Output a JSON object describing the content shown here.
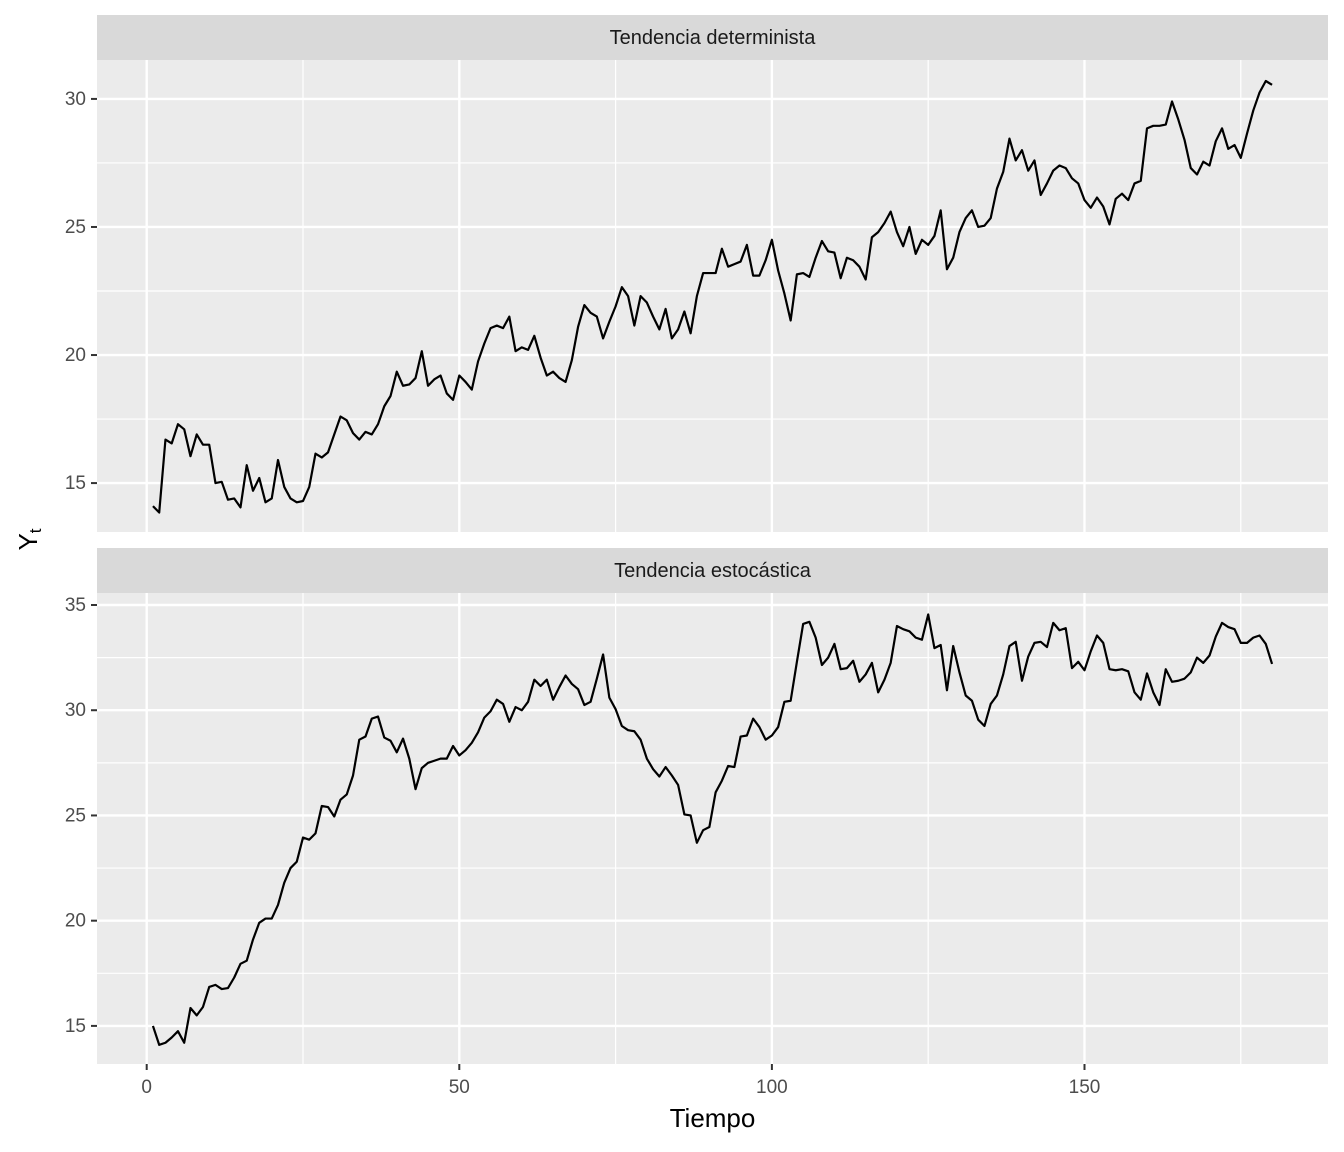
{
  "chart_data": [
    {
      "type": "line",
      "title": "Tendencia determinista",
      "ylabel": "Y",
      "ylabel_subscript": "t",
      "color": "#000000",
      "grid": true,
      "x": [
        1,
        2,
        3,
        4,
        5,
        6,
        7,
        8,
        9,
        10,
        11,
        12,
        13,
        14,
        15,
        16,
        17,
        18,
        19,
        20,
        21,
        22,
        23,
        24,
        25,
        26,
        27,
        28,
        29,
        30,
        31,
        32,
        33,
        34,
        35,
        36,
        37,
        38,
        39,
        40,
        41,
        42,
        43,
        44,
        45,
        46,
        47,
        48,
        49,
        50,
        51,
        52,
        53,
        54,
        55,
        56,
        57,
        58,
        59,
        60,
        61,
        62,
        63,
        64,
        65,
        66,
        67,
        68,
        69,
        70,
        71,
        72,
        73,
        74,
        75,
        76,
        77,
        78,
        79,
        80,
        81,
        82,
        83,
        84,
        85,
        86,
        87,
        88,
        89,
        90,
        91,
        92,
        93,
        94,
        95,
        96,
        97,
        98,
        99,
        100,
        101,
        102,
        103,
        104,
        105,
        106,
        107,
        108,
        109,
        110,
        111,
        112,
        113,
        114,
        115,
        116,
        117,
        118,
        119,
        120,
        121,
        122,
        123,
        124,
        125,
        126,
        127,
        128,
        129,
        130,
        131,
        132,
        133,
        134,
        135,
        136,
        137,
        138,
        139,
        140,
        141,
        142,
        143,
        144,
        145,
        146,
        147,
        148,
        149,
        150,
        151,
        152,
        153,
        154,
        155,
        156,
        157,
        158,
        159,
        160,
        161,
        162,
        163,
        164,
        165,
        166,
        167,
        168,
        169,
        170,
        171,
        172,
        173,
        174,
        175,
        176,
        177,
        178,
        179,
        180
      ],
      "values": [
        14.1,
        13.85,
        16.7,
        16.55,
        17.3,
        17.1,
        16.05,
        16.9,
        16.5,
        16.5,
        15.0,
        15.05,
        14.35,
        14.4,
        14.05,
        15.7,
        14.7,
        15.2,
        14.25,
        14.4,
        15.9,
        14.85,
        14.4,
        14.25,
        14.3,
        14.85,
        16.15,
        16.0,
        16.2,
        16.9,
        17.6,
        17.45,
        16.95,
        16.7,
        17.0,
        16.9,
        17.3,
        18.0,
        18.4,
        19.35,
        18.8,
        18.85,
        19.1,
        20.15,
        18.8,
        19.05,
        19.2,
        18.5,
        18.25,
        19.2,
        18.95,
        18.65,
        19.75,
        20.45,
        21.05,
        21.15,
        21.05,
        21.5,
        20.15,
        20.3,
        20.2,
        20.75,
        19.9,
        19.2,
        19.35,
        19.1,
        18.95,
        19.8,
        21.1,
        21.95,
        21.65,
        21.5,
        20.65,
        21.3,
        21.9,
        22.65,
        22.3,
        21.15,
        22.3,
        22.05,
        21.5,
        21.0,
        21.8,
        20.65,
        21.0,
        21.7,
        20.85,
        22.3,
        23.2,
        23.2,
        23.2,
        24.15,
        23.45,
        23.55,
        23.65,
        24.3,
        23.1,
        23.1,
        23.7,
        24.5,
        23.3,
        22.4,
        21.35,
        23.15,
        23.2,
        23.05,
        23.8,
        24.45,
        24.05,
        24.0,
        23.0,
        23.8,
        23.7,
        23.45,
        22.95,
        24.6,
        24.8,
        25.15,
        25.6,
        24.8,
        24.25,
        25.0,
        23.95,
        24.5,
        24.3,
        24.65,
        25.65,
        23.35,
        23.8,
        24.8,
        25.35,
        25.65,
        25.0,
        25.05,
        25.35,
        26.5,
        27.15,
        28.45,
        27.6,
        28.0,
        27.2,
        27.6,
        26.25,
        26.7,
        27.2,
        27.4,
        27.3,
        26.9,
        26.7,
        26.05,
        25.75,
        26.15,
        25.8,
        25.1,
        26.1,
        26.3,
        26.05,
        26.7,
        26.8,
        28.85,
        28.95,
        28.95,
        29.0,
        29.9,
        29.2,
        28.4,
        27.3,
        27.05,
        27.55,
        27.4,
        28.35,
        28.85,
        28.05,
        28.2,
        27.7,
        28.65,
        29.55,
        30.25,
        30.7,
        30.55
      ],
      "xlim": [
        -7.95,
        188.95
      ],
      "xticks": [
        0,
        50,
        100,
        150
      ],
      "minor_xticks": [
        25,
        75,
        125,
        175
      ],
      "ylim": [
        13.09,
        31.52
      ],
      "yticks": [
        15,
        20,
        25,
        30
      ],
      "minor_yticks": [
        17.5,
        22.5,
        27.5
      ]
    },
    {
      "type": "line",
      "title": "Tendencia estocástica",
      "xlabel": "Tiempo",
      "color": "#000000",
      "grid": true,
      "x": [
        1,
        2,
        3,
        4,
        5,
        6,
        7,
        8,
        9,
        10,
        11,
        12,
        13,
        14,
        15,
        16,
        17,
        18,
        19,
        20,
        21,
        22,
        23,
        24,
        25,
        26,
        27,
        28,
        29,
        30,
        31,
        32,
        33,
        34,
        35,
        36,
        37,
        38,
        39,
        40,
        41,
        42,
        43,
        44,
        45,
        46,
        47,
        48,
        49,
        50,
        51,
        52,
        53,
        54,
        55,
        56,
        57,
        58,
        59,
        60,
        61,
        62,
        63,
        64,
        65,
        66,
        67,
        68,
        69,
        70,
        71,
        72,
        73,
        74,
        75,
        76,
        77,
        78,
        79,
        80,
        81,
        82,
        83,
        84,
        85,
        86,
        87,
        88,
        89,
        90,
        91,
        92,
        93,
        94,
        95,
        96,
        97,
        98,
        99,
        100,
        101,
        102,
        103,
        104,
        105,
        106,
        107,
        108,
        109,
        110,
        111,
        112,
        113,
        114,
        115,
        116,
        117,
        118,
        119,
        120,
        121,
        122,
        123,
        124,
        125,
        126,
        127,
        128,
        129,
        130,
        131,
        132,
        133,
        134,
        135,
        136,
        137,
        138,
        139,
        140,
        141,
        142,
        143,
        144,
        145,
        146,
        147,
        148,
        149,
        150,
        151,
        152,
        153,
        154,
        155,
        156,
        157,
        158,
        159,
        160,
        161,
        162,
        163,
        164,
        165,
        166,
        167,
        168,
        169,
        170,
        171,
        172,
        173,
        174,
        175,
        176,
        177,
        178,
        179,
        180
      ],
      "values": [
        15.0,
        14.1,
        14.2,
        14.45,
        14.75,
        14.2,
        15.85,
        15.5,
        15.9,
        16.85,
        16.95,
        16.75,
        16.8,
        17.3,
        17.95,
        18.1,
        19.1,
        19.9,
        20.1,
        20.1,
        20.75,
        21.8,
        22.5,
        22.8,
        23.95,
        23.85,
        24.15,
        25.45,
        25.4,
        24.95,
        25.75,
        26.0,
        26.9,
        28.6,
        28.75,
        29.6,
        29.7,
        28.7,
        28.55,
        28.0,
        28.65,
        27.7,
        26.25,
        27.25,
        27.5,
        27.6,
        27.7,
        27.7,
        28.3,
        27.85,
        28.1,
        28.45,
        28.95,
        29.65,
        29.95,
        30.5,
        30.3,
        29.45,
        30.15,
        30.0,
        30.4,
        31.45,
        31.15,
        31.45,
        30.5,
        31.1,
        31.65,
        31.25,
        31.0,
        30.25,
        30.4,
        31.5,
        32.65,
        30.6,
        30.05,
        29.25,
        29.05,
        29.0,
        28.6,
        27.7,
        27.2,
        26.85,
        27.3,
        26.9,
        26.45,
        25.05,
        25.0,
        23.7,
        24.3,
        24.45,
        26.1,
        26.65,
        27.35,
        27.3,
        28.75,
        28.8,
        29.6,
        29.2,
        28.6,
        28.8,
        29.2,
        30.4,
        30.45,
        32.3,
        34.1,
        34.2,
        33.45,
        32.15,
        32.5,
        33.15,
        31.95,
        32.0,
        32.35,
        31.35,
        31.7,
        32.25,
        30.85,
        31.45,
        32.25,
        34.0,
        33.85,
        33.75,
        33.45,
        33.35,
        34.55,
        32.95,
        33.1,
        30.95,
        33.05,
        31.8,
        30.7,
        30.45,
        29.55,
        29.25,
        30.3,
        30.7,
        31.7,
        33.05,
        33.25,
        31.4,
        32.55,
        33.2,
        33.25,
        33.0,
        34.15,
        33.8,
        33.9,
        32.0,
        32.3,
        31.9,
        32.8,
        33.55,
        33.2,
        31.95,
        31.9,
        31.95,
        31.85,
        30.85,
        30.5,
        31.75,
        30.85,
        30.25,
        31.95,
        31.35,
        31.4,
        31.5,
        31.8,
        32.5,
        32.25,
        32.6,
        33.5,
        34.15,
        33.95,
        33.85,
        33.2,
        33.2,
        33.45,
        33.55,
        33.15,
        32.2
      ],
      "xlim": [
        -7.95,
        188.95
      ],
      "xticks": [
        0,
        50,
        100,
        150
      ],
      "minor_xticks": [
        25,
        75,
        125,
        175
      ],
      "ylim": [
        13.19,
        35.57
      ],
      "yticks": [
        15,
        20,
        25,
        30,
        35
      ],
      "minor_yticks": [
        17.5,
        22.5,
        27.5,
        32.5
      ]
    }
  ]
}
